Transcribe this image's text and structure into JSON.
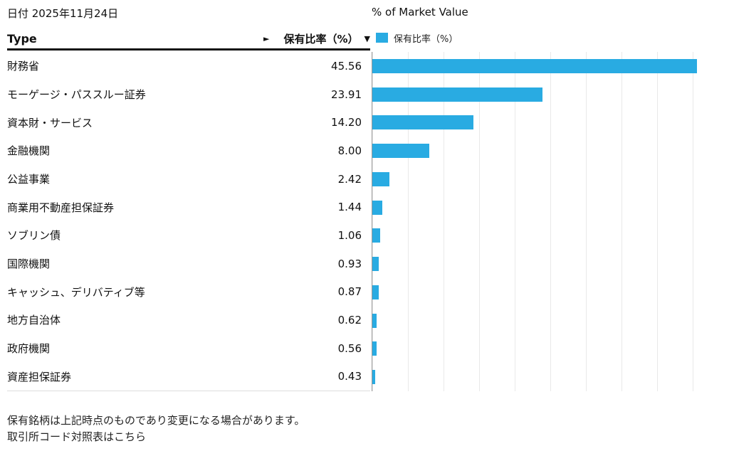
{
  "page": {
    "date_label": "日付 2025年11月24日",
    "table_header": {
      "type_label": "Type",
      "expand_icon": "►",
      "value_label": "保有比率（%）",
      "sort_icon": "▼"
    },
    "legend": {
      "label": "保有比率（%）"
    },
    "footer": {
      "line1": "保有銘柄は上記時点のものであり変更になる場合があります。",
      "line2": "取引所コード対照表はこちら"
    },
    "colors": {
      "bar": "#29abe2",
      "grid": "#e9e9e9",
      "axis": "#9a9a9a",
      "header_rule": "#111111",
      "table_bottom_rule": "#dddddd"
    }
  },
  "chart_data": {
    "type": "bar",
    "orientation": "horizontal",
    "title": "% of Market Value",
    "series_name": "保有比率（%）",
    "categories": [
      "財務省",
      "モーゲージ・パススルー証券",
      "資本財・サービス",
      "金融機関",
      "公益事業",
      "商業用不動産担保証券",
      "ソブリン債",
      "国際機関",
      "キャッシュ、デリバティブ等",
      "地方自治体",
      "政府機関",
      "資産担保証券"
    ],
    "values": [
      45.56,
      23.91,
      14.2,
      8.0,
      2.42,
      1.44,
      1.06,
      0.93,
      0.87,
      0.62,
      0.56,
      0.43
    ],
    "display_values": [
      "45.56",
      "23.91",
      "14.20",
      "8.00",
      "2.42",
      "1.44",
      "1.06",
      "0.93",
      "0.87",
      "0.62",
      "0.56",
      "0.43"
    ],
    "xlim": [
      0,
      50
    ],
    "gridline_step": 5,
    "grid": true,
    "legend_position": "top",
    "bar_color": "#29abe2"
  }
}
